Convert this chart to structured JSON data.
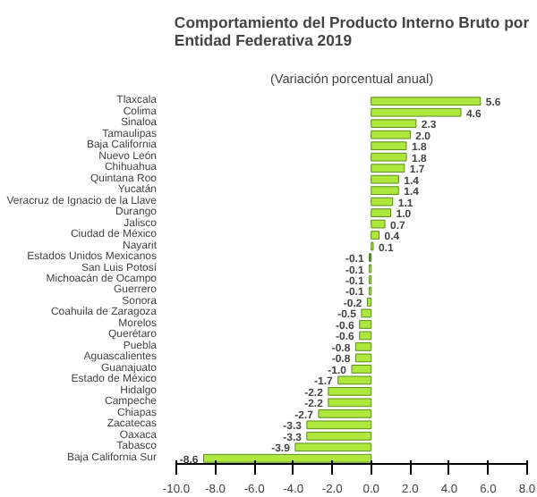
{
  "chart_data": {
    "type": "bar",
    "orientation": "horizontal",
    "title": "Comportamiento del Producto Interno Bruto por Entidad Federativa 2019",
    "subtitle": "(Variación porcentual anual)",
    "categories": [
      "Tlaxcala",
      "Colima",
      "Sinaloa",
      "Tamaulipas",
      "Baja California",
      "Nuevo León",
      "Chihuahua",
      "Quintana Roo",
      "Yucatán",
      "Veracruz de Ignacio de la Llave",
      "Durango",
      "Jalisco",
      "Ciudad de México",
      "Nayarit",
      "Estados Unidos Mexicanos",
      "San Luis Potosí",
      "Michoacán de Ocampo",
      "Guerrero",
      "Sonora",
      "Coahuila de Zaragoza",
      "Morelos",
      "Querétaro",
      "Puebla",
      "Aguascalientes",
      "Guanajuato",
      "Estado de México",
      "Hidalgo",
      "Campeche",
      "Chiapas",
      "Zacatecas",
      "Oaxaca",
      "Tabasco",
      "Baja California Sur"
    ],
    "values": [
      5.6,
      4.6,
      2.3,
      2.0,
      1.8,
      1.8,
      1.7,
      1.4,
      1.4,
      1.1,
      1.0,
      0.7,
      0.4,
      0.1,
      -0.1,
      -0.1,
      -0.1,
      -0.1,
      -0.2,
      -0.5,
      -0.6,
      -0.6,
      -0.8,
      -0.8,
      -1.0,
      -1.7,
      -2.2,
      -2.2,
      -2.7,
      -3.3,
      -3.3,
      -3.9,
      -8.6
    ],
    "colors": [
      "#aee83c",
      "#aee83c",
      "#aee83c",
      "#aee83c",
      "#aee83c",
      "#aee83c",
      "#aee83c",
      "#aee83c",
      "#aee83c",
      "#aee83c",
      "#aee83c",
      "#aee83c",
      "#aee83c",
      "#aee83c",
      "#2e6db4",
      "#aee83c",
      "#aee83c",
      "#aee83c",
      "#aee83c",
      "#aee83c",
      "#aee83c",
      "#aee83c",
      "#aee83c",
      "#aee83c",
      "#aee83c",
      "#aee83c",
      "#aee83c",
      "#aee83c",
      "#aee83c",
      "#aee83c",
      "#aee83c",
      "#aee83c",
      "#aee83c"
    ],
    "xlim": [
      -10.0,
      8.0
    ],
    "xticks": [
      {
        "value": -10,
        "label": "-10.0"
      },
      {
        "value": -8,
        "label": "-8.0"
      },
      {
        "value": -6,
        "label": "-6.0"
      },
      {
        "value": -4,
        "label": "-4.0"
      },
      {
        "value": -2,
        "label": "-2.0"
      },
      {
        "value": 0,
        "label": "0.0"
      },
      {
        "value": 2,
        "label": "2.0"
      },
      {
        "value": 4,
        "label": "4.0"
      },
      {
        "value": 6,
        "label": "6.0"
      },
      {
        "value": 8,
        "label": "8.0"
      }
    ],
    "value_labels": [
      "5.6",
      "4.6",
      "2.3",
      "2.0",
      "1.8",
      "1.8",
      "1.7",
      "1.4",
      "1.4",
      "1.1",
      "1.0",
      "0.7",
      "0.4",
      "0.1",
      "-0.1",
      "-0.1",
      "-0.1",
      "-0.1",
      "-0.2",
      "-0.5",
      "-0.6",
      "-0.6",
      "-0.8",
      "-0.8",
      "-1.0",
      "-1.7",
      "-2.2",
      "-2.2",
      "-2.7",
      "-3.3",
      "-3.3",
      "-3.9",
      "-8.6"
    ],
    "grid": false
  }
}
